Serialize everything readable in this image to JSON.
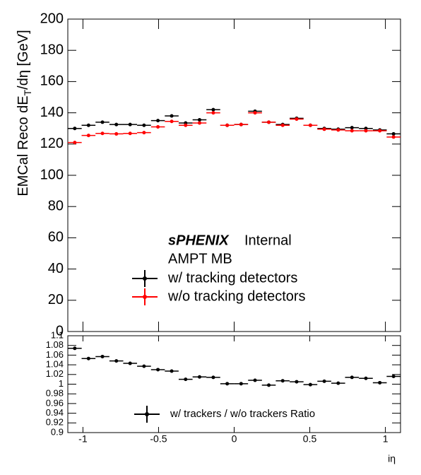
{
  "chart_data": [
    {
      "type": "scatter",
      "y_label": [
        "EMCal Reco dE",
        "T",
        "/dη [GeV]"
      ],
      "annotations": [
        "sPHENIX",
        "Internal",
        "AMPT MB"
      ],
      "x": [
        -1.054,
        -0.963,
        -0.871,
        -0.779,
        -0.688,
        -0.596,
        -0.504,
        -0.413,
        -0.321,
        -0.229,
        -0.138,
        -0.046,
        0.046,
        0.138,
        0.229,
        0.321,
        0.413,
        0.504,
        0.596,
        0.688,
        0.779,
        0.871,
        0.963,
        1.054
      ],
      "series": [
        {
          "name": "w/ tracking detectors",
          "color": "#000000",
          "values": [
            130,
            132,
            134,
            132.5,
            132.5,
            132,
            135,
            138,
            133.5,
            135.5,
            142,
            132,
            132.5,
            141,
            134,
            132.5,
            136.5,
            132,
            130,
            129.5,
            130.5,
            130,
            129,
            126.5
          ]
        },
        {
          "name": "w/o tracking detectors",
          "color": "#ff0000",
          "values": [
            121,
            125.5,
            126.8,
            126.5,
            126.8,
            127.3,
            131,
            134.5,
            132,
            133.5,
            140,
            132,
            132.5,
            140,
            134,
            132,
            136,
            132,
            129.5,
            129,
            128.5,
            128.5,
            128.5,
            124.5
          ]
        }
      ],
      "xlim": [
        -1.1,
        1.1
      ],
      "xticks": [
        -1,
        -0.5,
        0,
        0.5,
        1
      ],
      "ylim": [
        0,
        200
      ],
      "yticks": [
        0,
        20,
        40,
        60,
        80,
        100,
        120,
        140,
        160,
        180,
        200
      ]
    },
    {
      "type": "scatter",
      "x_label": "iη",
      "x": [
        -1.054,
        -0.963,
        -0.871,
        -0.779,
        -0.688,
        -0.596,
        -0.504,
        -0.413,
        -0.321,
        -0.229,
        -0.138,
        -0.046,
        0.046,
        0.138,
        0.229,
        0.321,
        0.413,
        0.504,
        0.596,
        0.688,
        0.779,
        0.871,
        0.963,
        1.054
      ],
      "series": [
        {
          "name": "w/ trackers / w/o trackers Ratio",
          "color": "#000000",
          "values": [
            1.074,
            1.053,
            1.057,
            1.048,
            1.043,
            1.037,
            1.03,
            1.027,
            1.01,
            1.015,
            1.014,
            1.001,
            1.001,
            1.008,
            0.998,
            1.007,
            1.005,
            0.999,
            1.006,
            1.002,
            1.014,
            1.012,
            1.003,
            1.016
          ]
        }
      ],
      "xlim": [
        -1.1,
        1.1
      ],
      "xticks": [
        -1,
        -0.5,
        0,
        0.5,
        1
      ],
      "ylim": [
        0.9,
        1.1
      ],
      "yticks": [
        0.9,
        0.92,
        0.94,
        0.96,
        0.98,
        1,
        1.02,
        1.04,
        1.06,
        1.08,
        1.1
      ]
    }
  ]
}
